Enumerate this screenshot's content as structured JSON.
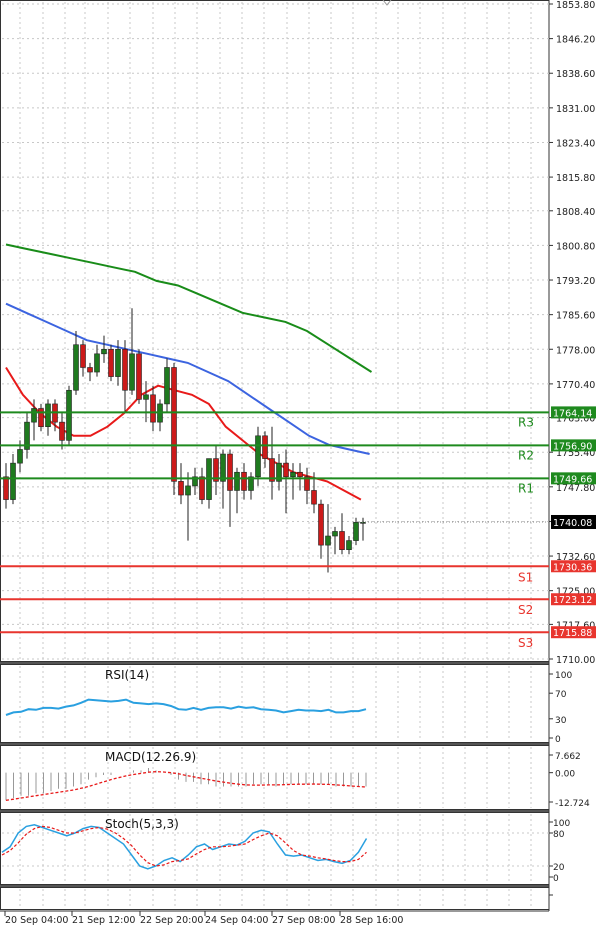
{
  "chart_data": [
    {
      "type": "candlestick",
      "panel": "main",
      "y_ticks": [
        "1853.80",
        "1846.20",
        "1838.60",
        "1831.00",
        "1823.40",
        "1815.80",
        "1808.40",
        "1800.80",
        "1793.20",
        "1785.60",
        "1778.00",
        "1770.40",
        "1763.00",
        "1755.40",
        "1747.80",
        "1740.20",
        "1732.60",
        "1725.00",
        "1717.60",
        "1710.00"
      ],
      "ylim": [
        1710.0,
        1853.8
      ],
      "x_ticks": [
        "20 Sep 04:00",
        "21 Sep 12:00",
        "22 Sep 20:00",
        "24 Sep 04:00",
        "27 Sep 08:00",
        "28 Sep 16:00"
      ],
      "current_price": "1740.08",
      "up_color": "#1f7a1f",
      "down_color": "#cc1a1a",
      "candles": [
        [
          1750,
          1753,
          1743,
          1745
        ],
        [
          1745,
          1755,
          1744,
          1753
        ],
        [
          1753,
          1758,
          1751,
          1756
        ],
        [
          1756,
          1764,
          1754,
          1762
        ],
        [
          1762,
          1767,
          1758,
          1765
        ],
        [
          1765,
          1766,
          1760,
          1761
        ],
        [
          1761,
          1767,
          1759,
          1766
        ],
        [
          1766,
          1767,
          1760,
          1762
        ],
        [
          1762,
          1764,
          1756,
          1758
        ],
        [
          1758,
          1770,
          1757,
          1769
        ],
        [
          1769,
          1782,
          1768,
          1779
        ],
        [
          1779,
          1780,
          1772,
          1774
        ],
        [
          1774,
          1775,
          1771,
          1773
        ],
        [
          1773,
          1779,
          1772,
          1777
        ],
        [
          1777,
          1781,
          1775,
          1778
        ],
        [
          1778,
          1779,
          1771,
          1772
        ],
        [
          1772,
          1780,
          1770,
          1778
        ],
        [
          1778,
          1780,
          1764,
          1769
        ],
        [
          1769,
          1787,
          1768,
          1777
        ],
        [
          1777,
          1778,
          1766,
          1767
        ],
        [
          1767,
          1771,
          1762,
          1768
        ],
        [
          1768,
          1770,
          1760,
          1762
        ],
        [
          1762,
          1767,
          1760,
          1766
        ],
        [
          1766,
          1776,
          1764,
          1774
        ],
        [
          1774,
          1775,
          1746,
          1749
        ],
        [
          1749,
          1753,
          1744,
          1746
        ],
        [
          1746,
          1751,
          1736,
          1748
        ],
        [
          1748,
          1752,
          1746,
          1750
        ],
        [
          1750,
          1752,
          1744,
          1745
        ],
        [
          1745,
          1753,
          1743,
          1754
        ],
        [
          1754,
          1757,
          1746,
          1749
        ],
        [
          1749,
          1756,
          1743,
          1755
        ],
        [
          1755,
          1756,
          1739,
          1747
        ],
        [
          1747,
          1752,
          1742,
          1751
        ],
        [
          1751,
          1753,
          1745,
          1747
        ],
        [
          1747,
          1751,
          1745,
          1750
        ],
        [
          1750,
          1761,
          1748,
          1759
        ],
        [
          1759,
          1760,
          1752,
          1754
        ],
        [
          1754,
          1761,
          1745,
          1749
        ],
        [
          1749,
          1755,
          1747,
          1753
        ],
        [
          1753,
          1756,
          1742,
          1750
        ],
        [
          1750,
          1753,
          1745,
          1751
        ],
        [
          1751,
          1753,
          1747,
          1750
        ],
        [
          1750,
          1752,
          1744,
          1747
        ],
        [
          1747,
          1751,
          1742,
          1744
        ],
        [
          1744,
          1745,
          1732,
          1735
        ],
        [
          1735,
          1744,
          1729,
          1737
        ],
        [
          1737,
          1739,
          1733,
          1738
        ],
        [
          1738,
          1742,
          1733,
          1734
        ],
        [
          1734,
          1737,
          1733,
          1736
        ],
        [
          1736,
          1741,
          1735,
          1740
        ],
        [
          1740,
          1741,
          1736,
          1740
        ]
      ],
      "ma_red": [
        1774,
        1768,
        1764,
        1761,
        1759,
        1759,
        1761,
        1764,
        1768,
        1770,
        1769,
        1768,
        1766,
        1761,
        1758,
        1755,
        1753,
        1751,
        1750,
        1749,
        1747,
        1745
      ],
      "ma_blue": [
        1788,
        1786,
        1784,
        1782,
        1780,
        1779,
        1778,
        1777,
        1776,
        1775,
        1773,
        1771,
        1768,
        1765,
        1762,
        1759,
        1757,
        1756,
        1755
      ],
      "ma_green": [
        1801,
        1800,
        1799,
        1798,
        1797,
        1796,
        1795,
        1793,
        1792,
        1790,
        1788,
        1786,
        1785,
        1784,
        1782,
        1779,
        1776,
        1773
      ],
      "levels": [
        {
          "name": "R3",
          "value": "1764.14",
          "price": 1764.14,
          "color": "#1e8a1e"
        },
        {
          "name": "R2",
          "value": "1756.90",
          "price": 1756.9,
          "color": "#1e8a1e"
        },
        {
          "name": "R1",
          "value": "1749.66",
          "price": 1749.66,
          "color": "#1e8a1e"
        },
        {
          "name": "S1",
          "value": "1730.36",
          "price": 1730.36,
          "color": "#e8352e"
        },
        {
          "name": "S2",
          "value": "1723.12",
          "price": 1723.12,
          "color": "#e8352e"
        },
        {
          "name": "S3",
          "value": "1715.88",
          "price": 1715.88,
          "color": "#e8352e"
        }
      ]
    },
    {
      "type": "line",
      "panel": "rsi",
      "title": "RSI(14)",
      "y_ticks": [
        "100",
        "70",
        "30",
        "0"
      ],
      "ylim": [
        0,
        100
      ],
      "values": [
        36,
        40,
        41,
        45,
        44,
        47,
        47,
        46,
        49,
        51,
        55,
        60,
        59,
        58,
        57,
        58,
        60,
        55,
        54,
        53,
        54,
        53,
        50,
        45,
        44,
        47,
        44,
        47,
        48,
        48,
        46,
        49,
        47,
        48,
        45,
        44,
        43,
        40,
        42,
        44,
        43,
        43,
        42,
        44,
        40,
        40,
        42,
        42,
        45
      ]
    },
    {
      "type": "line",
      "panel": "macd",
      "title": "MACD(12.26.9)",
      "y_ticks": [
        "7.662",
        "0.00",
        "-12.724"
      ],
      "ylim": [
        -12.724,
        7.662
      ],
      "histogram": [
        -12,
        -11,
        -10,
        -10,
        -9,
        -9,
        -8,
        -7,
        -7,
        -6,
        -5,
        -3,
        -2,
        -1,
        -1,
        0,
        0,
        1,
        1,
        2,
        1,
        0,
        -1,
        -3,
        -4,
        -4,
        -5,
        -5,
        -6,
        -6,
        -6,
        -6,
        -6,
        -5,
        -5,
        -5,
        -6,
        -5,
        -5,
        -5,
        -5,
        -5,
        -5,
        -5,
        -6,
        -6,
        -6,
        -6,
        -6
      ],
      "signal": [
        -12,
        -11.5,
        -11,
        -10.5,
        -10,
        -9.5,
        -9,
        -8.5,
        -8,
        -7.5,
        -6.8,
        -6,
        -5,
        -4,
        -3,
        -2.2,
        -1.4,
        -0.8,
        -0.3,
        0.2,
        0.4,
        0.3,
        0,
        -0.5,
        -1.2,
        -1.8,
        -2.4,
        -3,
        -3.6,
        -4.1,
        -4.6,
        -5,
        -5.3,
        -5.4,
        -5.4,
        -5.3,
        -5.3,
        -5.2,
        -5.1,
        -5,
        -5,
        -4.9,
        -5,
        -5.1,
        -5.3,
        -5.5,
        -5.8,
        -6,
        -6.2
      ]
    },
    {
      "type": "line",
      "panel": "stoch",
      "title": "Stoch(5,3,3)",
      "y_ticks": [
        "100",
        "80",
        "20",
        "0"
      ],
      "ylim": [
        0,
        100
      ],
      "k": [
        45,
        55,
        80,
        92,
        95,
        90,
        85,
        80,
        75,
        80,
        88,
        92,
        90,
        80,
        70,
        60,
        40,
        20,
        15,
        20,
        30,
        35,
        28,
        40,
        55,
        60,
        50,
        55,
        60,
        58,
        65,
        80,
        85,
        82,
        60,
        40,
        38,
        40,
        35,
        30,
        32,
        28,
        25,
        30,
        45,
        70
      ],
      "d": [
        40,
        48,
        62,
        78,
        88,
        92,
        90,
        85,
        80,
        80,
        84,
        88,
        90,
        87,
        80,
        70,
        57,
        40,
        26,
        20,
        22,
        28,
        30,
        33,
        42,
        50,
        55,
        55,
        56,
        58,
        60,
        68,
        75,
        80,
        75,
        62,
        48,
        40,
        38,
        35,
        33,
        30,
        28,
        28,
        32,
        45
      ]
    }
  ]
}
